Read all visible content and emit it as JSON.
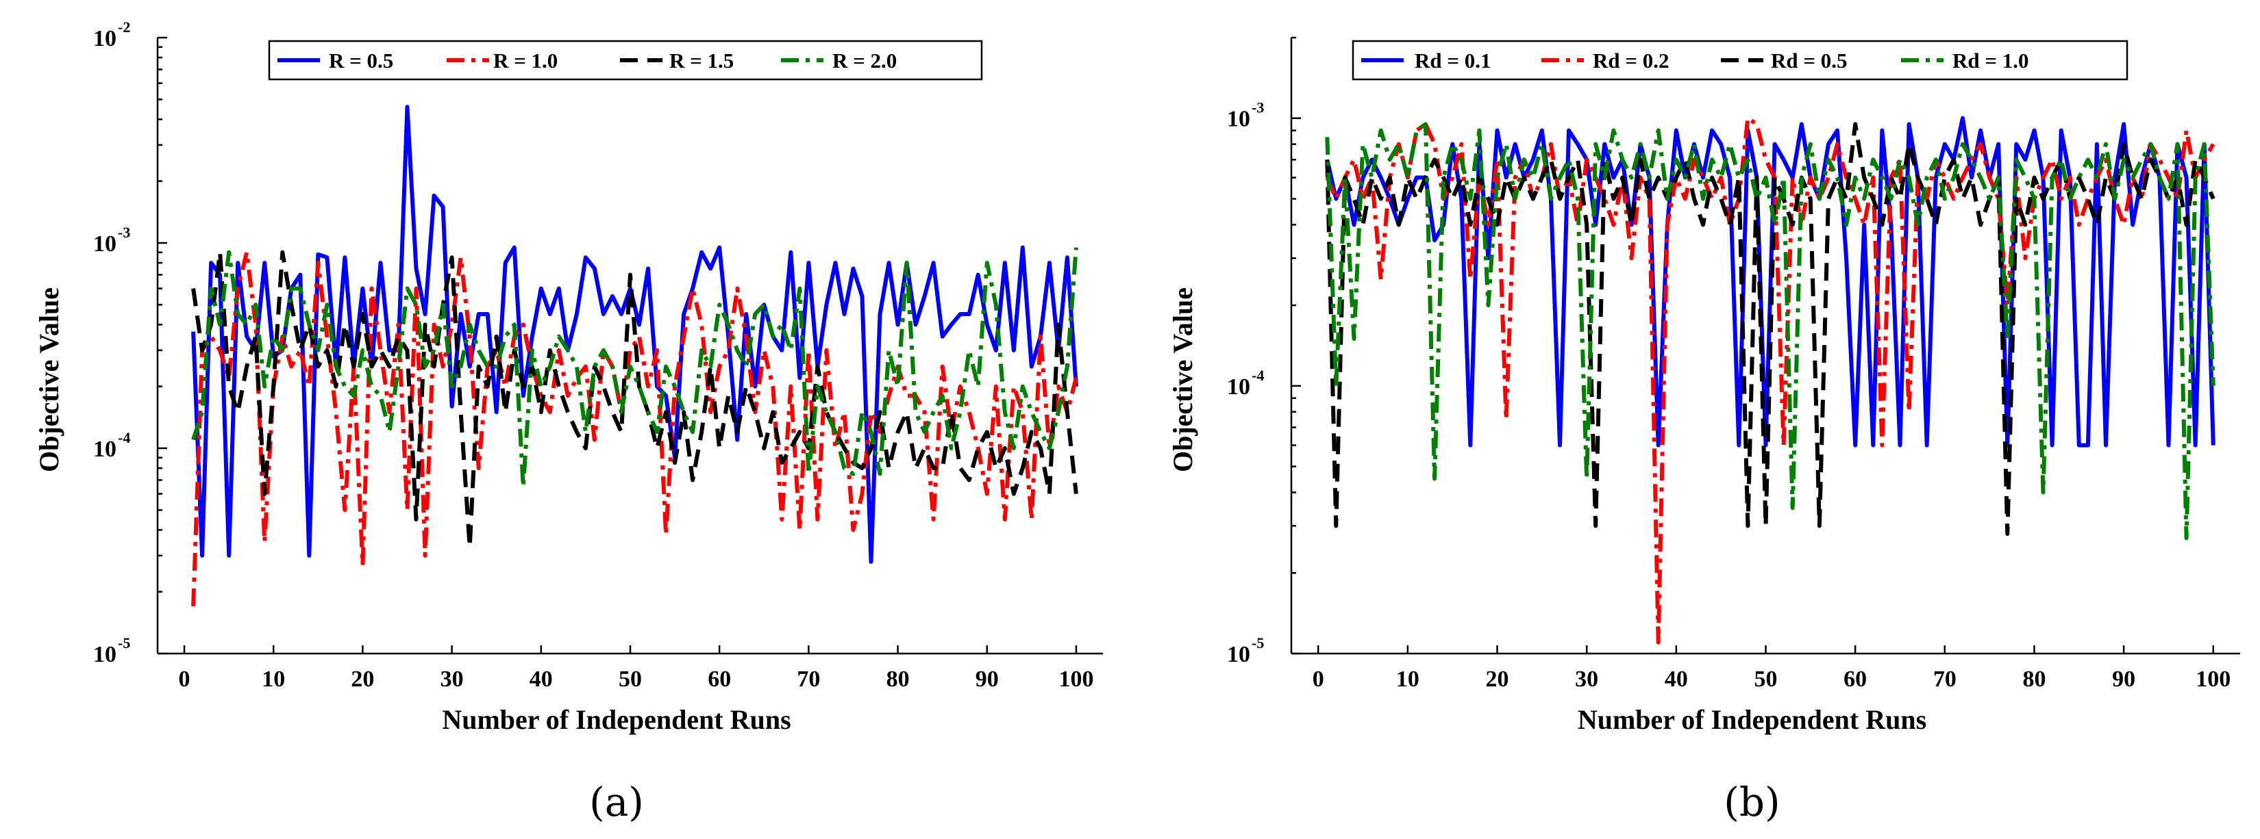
{
  "chart_data": [
    {
      "type": "line",
      "panel_label": "(a)",
      "xlabel": "Number of Independent Runs",
      "ylabel": "Objective Value",
      "yscale": "log",
      "xlim": [
        -3,
        103
      ],
      "xticks": [
        0,
        10,
        20,
        30,
        40,
        50,
        60,
        70,
        80,
        90,
        100
      ],
      "ylim": [
        1e-05,
        0.01
      ],
      "yticks": [
        {
          "base": "10",
          "exp": "-5",
          "value": 1e-05
        },
        {
          "base": "10",
          "exp": "-4",
          "value": 0.0001
        },
        {
          "base": "10",
          "exp": "-3",
          "value": 0.001
        },
        {
          "base": "10",
          "exp": "-2",
          "value": 0.01
        }
      ],
      "legend": {
        "placement": "top-center"
      },
      "series": [
        {
          "name": "R = 0.5",
          "color": "#0000ff",
          "dash": "solid",
          "values": [
            0.00037,
            3e-05,
            0.0008,
            0.0007,
            3e-05,
            0.0008,
            0.00035,
            0.0003,
            0.0008,
            0.00028,
            0.0003,
            0.0006,
            0.0007,
            3e-05,
            0.00088,
            0.00085,
            0.00025,
            0.00085,
            0.00025,
            0.0006,
            0.00025,
            0.0008,
            0.0003,
            0.0003,
            0.0046,
            0.00075,
            0.00045,
            0.0017,
            0.0015,
            0.00016,
            0.00045,
            0.00025,
            0.00045,
            0.00045,
            0.00015,
            0.0008,
            0.00095,
            0.00018,
            0.00035,
            0.0006,
            0.00045,
            0.0006,
            0.0003,
            0.00045,
            0.00085,
            0.00075,
            0.00045,
            0.00055,
            0.00045,
            0.0006,
            0.0004,
            0.00075,
            0.0002,
            0.00018,
            9e-05,
            0.00045,
            0.0006,
            0.0009,
            0.00075,
            0.00095,
            0.00035,
            0.00011,
            0.00045,
            0.0002,
            0.0005,
            0.00035,
            0.0003,
            0.0009,
            0.00022,
            0.0008,
            0.00025,
            0.0005,
            0.0008,
            0.00045,
            0.00075,
            0.00055,
            2.8e-05,
            0.00045,
            0.0008,
            0.0004,
            0.0008,
            0.0004,
            0.00055,
            0.0008,
            0.00035,
            0.0004,
            0.00045,
            0.00045,
            0.0007,
            0.0004,
            0.0003,
            0.0008,
            0.0003,
            0.00095,
            0.00025,
            0.00035,
            0.0008,
            0.0003,
            0.00085,
            0.0002
          ]
        },
        {
          "name": "R = 1.0",
          "color": "#ff0000",
          "dash": "dashdot",
          "values": [
            1.7e-05,
            0.0003,
            0.00035,
            0.0003,
            0.00022,
            0.0006,
            0.0009,
            0.0004,
            3.5e-05,
            0.0002,
            0.00035,
            0.00025,
            0.0003,
            0.0002,
            0.0008,
            0.00035,
            0.00015,
            5e-05,
            0.00025,
            2.7e-05,
            0.0006,
            0.0003,
            0.00015,
            0.0004,
            5e-05,
            0.0006,
            3e-05,
            0.0004,
            0.00025,
            0.0004,
            0.00085,
            0.00035,
            8e-05,
            0.00025,
            0.0003,
            0.0002,
            0.00035,
            0.0004,
            0.00025,
            0.00018,
            0.00015,
            0.0003,
            0.00018,
            0.00022,
            0.00025,
            0.00011,
            0.0003,
            0.00025,
            0.00015,
            0.0003,
            0.00035,
            0.0002,
            0.0003,
            3.8e-05,
            0.0002,
            0.00035,
            0.0006,
            0.0004,
            0.00015,
            0.00025,
            0.0003,
            0.0006,
            0.00035,
            0.00015,
            0.0003,
            0.0002,
            4.5e-05,
            0.0002,
            4e-05,
            0.0003,
            4.5e-05,
            0.0003,
            0.0001,
            0.00015,
            4e-05,
            6e-05,
            0.00015,
            0.00012,
            0.00018,
            0.00025,
            0.00018,
            0.00018,
            0.00015,
            4.5e-05,
            0.00025,
            0.00012,
            0.0002,
            0.00015,
            0.0001,
            6e-05,
            0.0002,
            4.5e-05,
            0.0002,
            0.00015,
            4.5e-05,
            0.00035,
            0.0001,
            0.0002,
            0.00015,
            0.00022
          ]
        },
        {
          "name": "R = 1.5",
          "color": "#000000",
          "dash": "dash",
          "values": [
            0.0006,
            0.0003,
            0.0004,
            0.0009,
            0.0002,
            0.00015,
            0.00025,
            0.00035,
            6e-05,
            0.0002,
            0.0009,
            0.0005,
            0.0003,
            0.0004,
            0.00025,
            0.0003,
            0.0002,
            0.0004,
            0.00025,
            0.00045,
            0.00025,
            0.0003,
            0.00025,
            0.00035,
            0.0003,
            4.5e-05,
            0.0004,
            0.00025,
            0.0005,
            0.00085,
            0.00015,
            3.3e-05,
            0.00025,
            0.0002,
            0.00035,
            0.00015,
            0.0003,
            0.0002,
            0.00025,
            0.00015,
            0.0003,
            0.0002,
            0.00015,
            0.00012,
            0.0001,
            0.00025,
            0.0002,
            0.00015,
            0.00012,
            0.0007,
            0.0002,
            0.00015,
            0.0001,
            0.00015,
            8.5e-05,
            0.00015,
            7e-05,
            0.00012,
            0.00025,
            0.0001,
            0.00018,
            0.00012,
            0.0002,
            0.00015,
            0.0001,
            0.00015,
            8.5e-05,
            0.0001,
            0.00012,
            0.0001,
            0.00025,
            0.00015,
            0.00012,
            0.0001,
            8.5e-05,
            8e-05,
            0.0001,
            0.00015,
            8e-05,
            0.00012,
            0.00015,
            8e-05,
            0.0001,
            8e-05,
            8e-05,
            0.00015,
            8e-05,
            7e-05,
            0.0001,
            0.00012,
            8e-05,
            0.0001,
            6e-05,
            8e-05,
            0.00012,
            0.0001,
            6e-05,
            0.0004,
            0.00015,
            6e-05
          ]
        },
        {
          "name": "R = 2.0",
          "color": "#008000",
          "dash": "dashdot",
          "values": [
            0.00011,
            0.00015,
            0.0006,
            0.0004,
            0.0009,
            0.00045,
            0.0004,
            0.0005,
            0.0002,
            0.00035,
            0.0003,
            0.0006,
            0.0006,
            0.0004,
            0.0003,
            0.0005,
            0.00025,
            0.0002,
            0.00018,
            0.0003,
            0.0002,
            0.00018,
            0.00012,
            0.00025,
            0.0006,
            0.0005,
            0.00025,
            0.0003,
            0.0005,
            0.0002,
            0.00025,
            0.0004,
            0.0003,
            0.00025,
            0.00025,
            0.00035,
            0.0004,
            6.5e-05,
            0.0003,
            0.0002,
            0.00025,
            0.00035,
            0.0003,
            0.00025,
            0.00012,
            0.00025,
            0.0003,
            0.00025,
            0.00015,
            0.00025,
            0.0002,
            0.00015,
            0.00012,
            0.00025,
            0.0002,
            0.00015,
            0.00012,
            0.0003,
            0.00025,
            0.0005,
            0.0004,
            0.0003,
            0.00025,
            0.00045,
            0.0005,
            0.00035,
            0.0004,
            0.0003,
            0.0006,
            7.5e-05,
            0.0002,
            0.00015,
            0.00012,
            8e-05,
            7.5e-05,
            0.00015,
            0.00012,
            7.5e-05,
            0.0003,
            0.0002,
            0.0008,
            0.00015,
            0.00012,
            0.00015,
            0.00018,
            0.0001,
            0.00015,
            0.0003,
            0.0002,
            0.0008,
            0.0005,
            0.00015,
            0.0001,
            0.0002,
            0.00015,
            0.00012,
            0.0001,
            0.00015,
            0.00025,
            0.00095
          ]
        }
      ]
    },
    {
      "type": "line",
      "panel_label": "(b)",
      "xlabel": "Number of Independent Runs",
      "ylabel": "Objective Value",
      "yscale": "log",
      "xlim": [
        -3,
        103
      ],
      "xticks": [
        0,
        10,
        20,
        30,
        40,
        50,
        60,
        70,
        80,
        90,
        100
      ],
      "ylim": [
        1e-05,
        0.002
      ],
      "yticks": [
        {
          "base": "10",
          "exp": "-5",
          "value": 1e-05
        },
        {
          "base": "10",
          "exp": "-4",
          "value": 0.0001
        },
        {
          "base": "10",
          "exp": "-3",
          "value": 0.001
        }
      ],
      "legend": {
        "placement": "top-center"
      },
      "series": [
        {
          "name": "Rd = 0.1",
          "color": "#0000ff",
          "dash": "solid",
          "values": [
            0.0007,
            0.0005,
            0.0006,
            0.0004,
            0.0006,
            0.0007,
            0.0006,
            0.0005,
            0.0004,
            0.0005,
            0.0006,
            0.0006,
            0.00035,
            0.0004,
            0.0008,
            0.0005,
            6e-05,
            0.0008,
            0.0003,
            0.0009,
            0.0006,
            0.0008,
            0.0006,
            0.0007,
            0.0009,
            0.0005,
            6e-05,
            0.0009,
            0.0008,
            0.0007,
            0.0004,
            0.0008,
            0.0006,
            0.0007,
            0.0004,
            0.0008,
            0.0006,
            6e-05,
            0.0004,
            0.0009,
            0.0006,
            0.0008,
            0.0006,
            0.0009,
            0.0008,
            0.0006,
            6e-05,
            0.0009,
            0.0006,
            6e-05,
            0.0008,
            0.0007,
            0.0006,
            0.00095,
            0.0006,
            0.0005,
            0.0008,
            0.0009,
            0.0003,
            6e-05,
            0.0004,
            6e-05,
            0.0009,
            0.0004,
            6e-05,
            0.00095,
            0.0006,
            6e-05,
            0.0006,
            0.0008,
            0.0007,
            0.001,
            0.0006,
            0.0009,
            0.0006,
            0.0008,
            6e-05,
            0.0008,
            0.0007,
            0.0009,
            0.0006,
            6e-05,
            0.0009,
            0.0006,
            6e-05,
            6e-05,
            0.0008,
            6e-05,
            0.0006,
            0.00095,
            0.0004,
            0.0006,
            0.0008,
            0.0006,
            6e-05,
            0.0008,
            0.0006,
            6e-05,
            0.0008,
            6e-05
          ]
        },
        {
          "name": "Rd = 0.2",
          "color": "#ff0000",
          "dash": "dashdot",
          "values": [
            0.0006,
            0.0005,
            0.0006,
            0.0007,
            0.0005,
            0.0006,
            0.00025,
            0.0006,
            0.0008,
            0.0006,
            0.0009,
            0.00095,
            0.0008,
            0.0005,
            0.0006,
            0.0008,
            0.00025,
            0.0006,
            0.0004,
            0.0007,
            7.5e-05,
            0.0006,
            0.0007,
            0.0005,
            0.0006,
            0.0008,
            0.0005,
            0.0006,
            0.0004,
            0.0007,
            0.0006,
            0.0005,
            0.0004,
            0.0006,
            0.0003,
            0.0006,
            0.0005,
            1.1e-05,
            0.0004,
            0.0006,
            0.0005,
            0.0007,
            0.0006,
            0.0005,
            0.0006,
            0.0004,
            0.0005,
            0.001,
            0.00095,
            0.0007,
            0.0006,
            6e-05,
            0.0006,
            0.0004,
            0.0006,
            0.0005,
            0.0006,
            0.0008,
            0.0006,
            0.0005,
            0.0004,
            0.0006,
            6e-05,
            0.0006,
            0.0007,
            8e-05,
            0.0006,
            0.0005,
            0.0007,
            0.0006,
            0.0005,
            0.0006,
            0.0007,
            0.0008,
            0.0006,
            0.0005,
            0.0002,
            0.0006,
            0.0003,
            0.0005,
            0.0006,
            0.0007,
            0.0005,
            0.0006,
            0.0004,
            0.0005,
            0.0006,
            0.0007,
            0.0005,
            0.0004,
            0.0006,
            0.0005,
            0.0008,
            0.0007,
            0.0006,
            0.0005,
            0.0009,
            0.0006,
            0.0007,
            0.0008
          ]
        },
        {
          "name": "Rd = 0.5",
          "color": "#000000",
          "dash": "dash",
          "values": [
            0.0007,
            3e-05,
            0.0006,
            0.0005,
            0.0004,
            0.0006,
            0.0005,
            0.0006,
            0.0004,
            0.0006,
            0.0005,
            0.0006,
            0.0007,
            0.0006,
            0.0005,
            0.0006,
            0.0004,
            0.0006,
            0.0005,
            0.0004,
            0.0006,
            0.0005,
            0.0006,
            0.0005,
            0.0006,
            0.0007,
            0.0005,
            0.0006,
            0.0007,
            0.0004,
            3e-05,
            0.0007,
            0.0005,
            0.0006,
            0.0004,
            0.0007,
            0.0005,
            0.0006,
            0.0005,
            0.0006,
            0.0007,
            0.0005,
            0.0004,
            0.0006,
            0.0005,
            0.0004,
            0.0006,
            3e-05,
            0.0006,
            3e-05,
            0.0006,
            0.0005,
            0.0004,
            0.0006,
            0.0005,
            3e-05,
            0.0005,
            0.0006,
            0.0005,
            0.00095,
            0.0006,
            0.0005,
            0.0004,
            0.0006,
            0.0005,
            0.0008,
            0.0006,
            0.0005,
            0.0004,
            0.0006,
            0.0007,
            0.0005,
            0.0006,
            0.0004,
            0.0005,
            0.0006,
            2.8e-05,
            0.0005,
            0.0004,
            0.0006,
            0.0005,
            0.0006,
            0.0007,
            0.0005,
            0.0006,
            0.0005,
            0.0004,
            0.0006,
            0.0005,
            0.0008,
            0.0006,
            0.0005,
            0.0007,
            0.0006,
            0.0005,
            0.0006,
            0.0004,
            0.0007,
            0.0006,
            0.0005
          ]
        },
        {
          "name": "Rd = 1.0",
          "color": "#008000",
          "dash": "dashdot",
          "values": [
            0.00085,
            0.0001,
            0.0006,
            0.00015,
            0.0008,
            0.0006,
            0.0009,
            0.0007,
            0.0008,
            0.0006,
            0.0009,
            0.00095,
            4.5e-05,
            0.0006,
            0.0008,
            0.0007,
            0.0005,
            0.0009,
            0.0002,
            0.0006,
            0.0008,
            0.0005,
            0.0007,
            0.0006,
            0.0008,
            0.0005,
            0.0006,
            0.0007,
            0.0005,
            4.5e-05,
            0.0008,
            0.0006,
            0.0009,
            0.0007,
            0.0006,
            0.0008,
            0.0006,
            0.0009,
            0.0005,
            0.0007,
            0.0006,
            0.0008,
            0.0005,
            0.0007,
            0.0006,
            0.0008,
            0.0006,
            0.0007,
            0.0005,
            0.0006,
            0.0004,
            0.0006,
            3.5e-05,
            0.0006,
            0.0008,
            0.0005,
            0.0007,
            0.0006,
            0.0004,
            0.0006,
            0.0005,
            0.0007,
            0.0006,
            0.0005,
            0.0007,
            0.0006,
            0.0004,
            0.0006,
            0.0007,
            0.0005,
            0.0006,
            0.0008,
            0.0007,
            0.0006,
            0.0005,
            0.0006,
            0.00015,
            0.0007,
            0.0006,
            0.0005,
            4e-05,
            0.0006,
            0.0007,
            0.0005,
            0.0006,
            0.0007,
            0.0006,
            0.0008,
            0.0005,
            0.0007,
            0.0006,
            0.0007,
            0.0008,
            0.0006,
            0.0005,
            0.0008,
            2.7e-05,
            0.0006,
            0.0008,
            0.0001
          ]
        }
      ]
    }
  ]
}
